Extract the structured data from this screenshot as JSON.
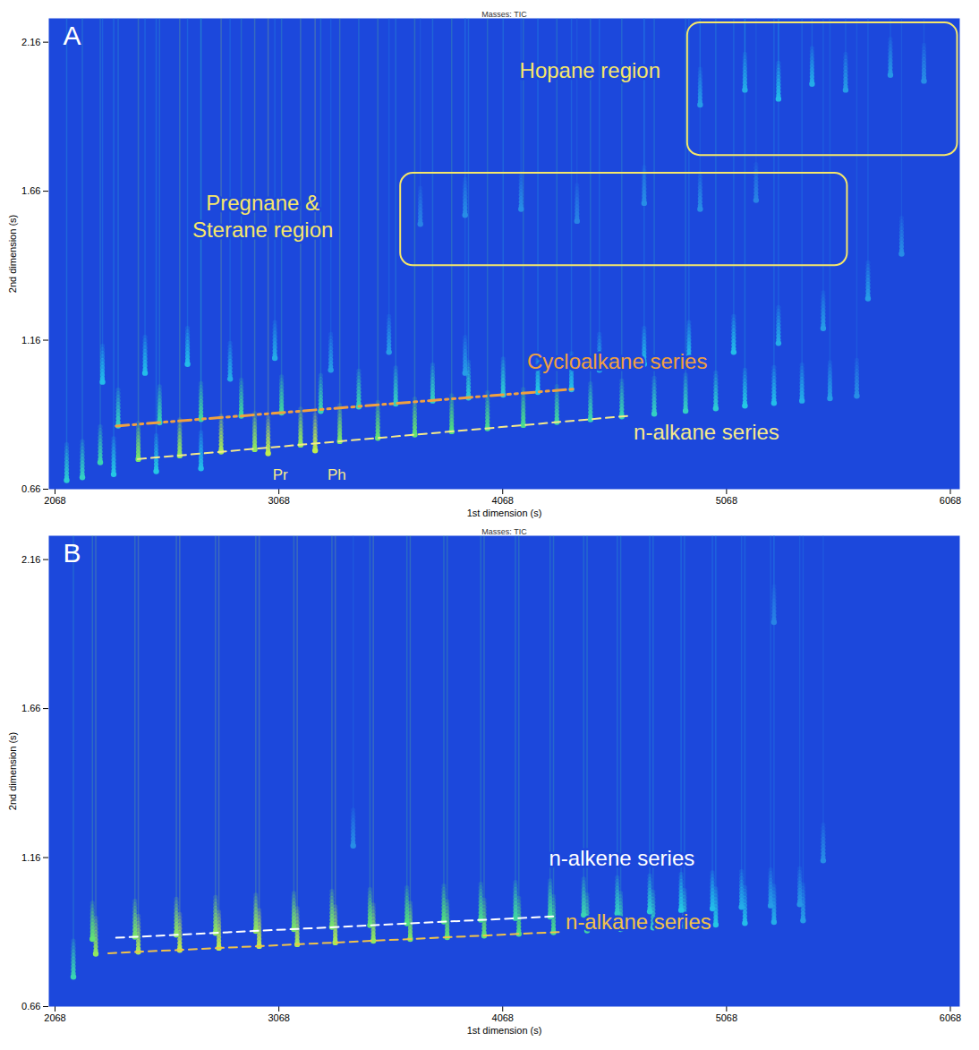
{
  "chart_data": [
    {
      "type": "contour",
      "title": "Masses: TIC",
      "panel": "A",
      "x_label": "1st dimension (s)",
      "y_label": "2nd dimension (s)",
      "xlim": [
        2040,
        6110
      ],
      "xticks": [
        2068,
        3068,
        4068,
        5068,
        6068
      ],
      "ylim": [
        0.66,
        2.24
      ],
      "yticks": [
        0.66,
        1.16,
        1.66,
        2.16
      ],
      "intensity_lim": [
        0,
        1
      ],
      "peaks": {
        "x": [
          2270,
          2440,
          2625,
          2810,
          2960,
          3165,
          3340,
          3510,
          3675,
          3840,
          4000,
          4160,
          4310,
          4460,
          4600,
          4745,
          4885,
          5020,
          5150,
          5280,
          5405,
          5530,
          5650,
          3020,
          3230,
          2350,
          2535,
          2720,
          2900,
          3080,
          3255,
          3425,
          3590,
          3755,
          3915,
          4070,
          4225,
          4375,
          2280,
          2470,
          2660,
          2850,
          3050,
          3300,
          3560,
          3900,
          4500,
          4700,
          4900,
          5100,
          5300,
          5500,
          5700,
          5850,
          2120,
          2190,
          2330,
          2520,
          2720,
          3700,
          3900,
          4150,
          4400,
          4700,
          4950,
          5200,
          4950,
          5150,
          5300,
          5450,
          5600,
          5800,
          5950
        ],
        "y": [
          0.75,
          0.761,
          0.773,
          0.786,
          0.794,
          0.809,
          0.821,
          0.832,
          0.843,
          0.854,
          0.864,
          0.875,
          0.885,
          0.894,
          0.904,
          0.913,
          0.923,
          0.931,
          0.94,
          0.949,
          0.957,
          0.965,
          0.973,
          0.78,
          0.79,
          0.873,
          0.884,
          0.895,
          0.906,
          0.917,
          0.922,
          0.937,
          0.947,
          0.957,
          0.967,
          0.977,
          0.986,
          0.995,
          1.02,
          1.05,
          1.08,
          1.03,
          1.1,
          1.06,
          1.12,
          1.05,
          1.06,
          1.08,
          1.1,
          1.12,
          1.15,
          1.2,
          1.3,
          1.45,
          0.69,
          0.7,
          0.71,
          0.72,
          0.73,
          1.55,
          1.58,
          1.6,
          1.56,
          1.62,
          1.6,
          1.63,
          1.95,
          2.0,
          1.97,
          2.02,
          2.0,
          2.05,
          2.03
        ],
        "intensity": [
          0.5,
          0.75,
          0.8,
          0.85,
          0.8,
          0.8,
          0.75,
          0.7,
          0.7,
          0.65,
          0.6,
          0.6,
          0.55,
          0.5,
          0.5,
          0.45,
          0.45,
          0.4,
          0.35,
          0.3,
          0.25,
          0.2,
          0.15,
          0.9,
          0.9,
          0.45,
          0.5,
          0.55,
          0.55,
          0.55,
          0.5,
          0.5,
          0.45,
          0.45,
          0.4,
          0.4,
          0.35,
          0.3,
          0.3,
          0.3,
          0.3,
          0.25,
          0.25,
          0.2,
          0.2,
          0.2,
          0.25,
          0.3,
          0.3,
          0.3,
          0.25,
          0.2,
          0.2,
          0.15,
          0.4,
          0.45,
          0.35,
          0.35,
          0.3,
          0.12,
          0.15,
          0.15,
          0.12,
          0.15,
          0.15,
          0.12,
          0.2,
          0.25,
          0.3,
          0.25,
          0.2,
          0.18,
          0.15
        ]
      },
      "series_lines": [
        {
          "name": "Cycloalkane series",
          "color": "#f0a040",
          "line_style": "dashdot",
          "x": [
            2341,
            4399
          ],
          "y": [
            0.872,
            0.997
          ],
          "label_x": 4177,
          "label_y": 1.086
        },
        {
          "name": "n-alkane series",
          "color": "#f5e98a",
          "line_style": "dashed",
          "x": [
            2438,
            4645
          ],
          "y": [
            0.761,
            0.907
          ],
          "label_x": 4653,
          "label_y": 0.851
        }
      ],
      "regions": [
        {
          "name": "Hopane region",
          "color": "#f5e66a",
          "x": [
            4894,
            6100
          ],
          "y": [
            1.78,
            2.225
          ],
          "label_x": 4458,
          "label_y": 2.07
        },
        {
          "name": "Pregnane &\nSterane region",
          "color": "#f5e66a",
          "x": [
            3612,
            5608
          ],
          "y": [
            1.41,
            1.72
          ],
          "label_x": 2996,
          "label_y": 1.578
        }
      ],
      "annotations": [
        {
          "text": "Pr",
          "color": "#f5e98a",
          "x": 3074,
          "y": 0.708
        },
        {
          "text": "Ph",
          "color": "#f5e98a",
          "x": 3327,
          "y": 0.708
        }
      ]
    },
    {
      "type": "contour",
      "title": "Masses: TIC",
      "panel": "B",
      "x_label": "1st dimension (s)",
      "y_label": "2nd dimension (s)",
      "xlim": [
        2040,
        6110
      ],
      "xticks": [
        2068,
        3068,
        4068,
        5068,
        6068
      ],
      "ylim": [
        0.66,
        2.24
      ],
      "yticks": [
        0.66,
        1.16,
        1.66,
        2.16
      ],
      "intensity_lim": [
        0,
        1
      ],
      "peaks": {
        "x": [
          2250,
          2440,
          2625,
          2800,
          2980,
          3150,
          3320,
          3490,
          3655,
          3820,
          3985,
          4140,
          4295,
          4445,
          4595,
          4740,
          4880,
          5020,
          5150,
          5280,
          5410,
          2235,
          2425,
          2610,
          2785,
          2965,
          3135,
          3305,
          3475,
          3640,
          3805,
          3970,
          4125,
          4280,
          4430,
          4580,
          4725,
          4865,
          5005,
          5135,
          5265,
          5395,
          2150,
          3400,
          5500,
          5280
        ],
        "y": [
          0.837,
          0.844,
          0.85,
          0.857,
          0.863,
          0.869,
          0.875,
          0.881,
          0.887,
          0.893,
          0.898,
          0.904,
          0.909,
          0.915,
          0.92,
          0.925,
          0.93,
          0.935,
          0.94,
          0.944,
          0.949,
          0.887,
          0.894,
          0.901,
          0.907,
          0.914,
          0.92,
          0.927,
          0.933,
          0.939,
          0.945,
          0.951,
          0.957,
          0.962,
          0.968,
          0.973,
          0.979,
          0.984,
          0.989,
          0.994,
          0.999,
          1.003,
          0.76,
          1.2,
          1.15,
          1.95
        ],
        "intensity": [
          0.8,
          0.85,
          0.9,
          0.9,
          0.9,
          0.85,
          0.85,
          0.8,
          0.75,
          0.7,
          0.7,
          0.65,
          0.6,
          0.55,
          0.5,
          0.45,
          0.4,
          0.35,
          0.3,
          0.25,
          0.2,
          0.7,
          0.75,
          0.8,
          0.8,
          0.8,
          0.75,
          0.75,
          0.7,
          0.65,
          0.65,
          0.6,
          0.55,
          0.55,
          0.5,
          0.45,
          0.4,
          0.35,
          0.3,
          0.25,
          0.2,
          0.18,
          0.5,
          0.15,
          0.15,
          0.12
        ]
      },
      "series_lines": [
        {
          "name": "n-alkene series",
          "color": "#ffffff",
          "line_style": "dashed",
          "x": [
            2341,
            4305
          ],
          "y": [
            0.891,
            0.963
          ],
          "label_x": 4275,
          "label_y": 1.157
        },
        {
          "name": "n-alkane series",
          "color": "#f0c24a",
          "line_style": "dashed",
          "x": [
            2306,
            4341
          ],
          "y": [
            0.839,
            0.911
          ],
          "label_x": 4349,
          "label_y": 0.943
        }
      ],
      "regions": [],
      "annotations": []
    }
  ]
}
